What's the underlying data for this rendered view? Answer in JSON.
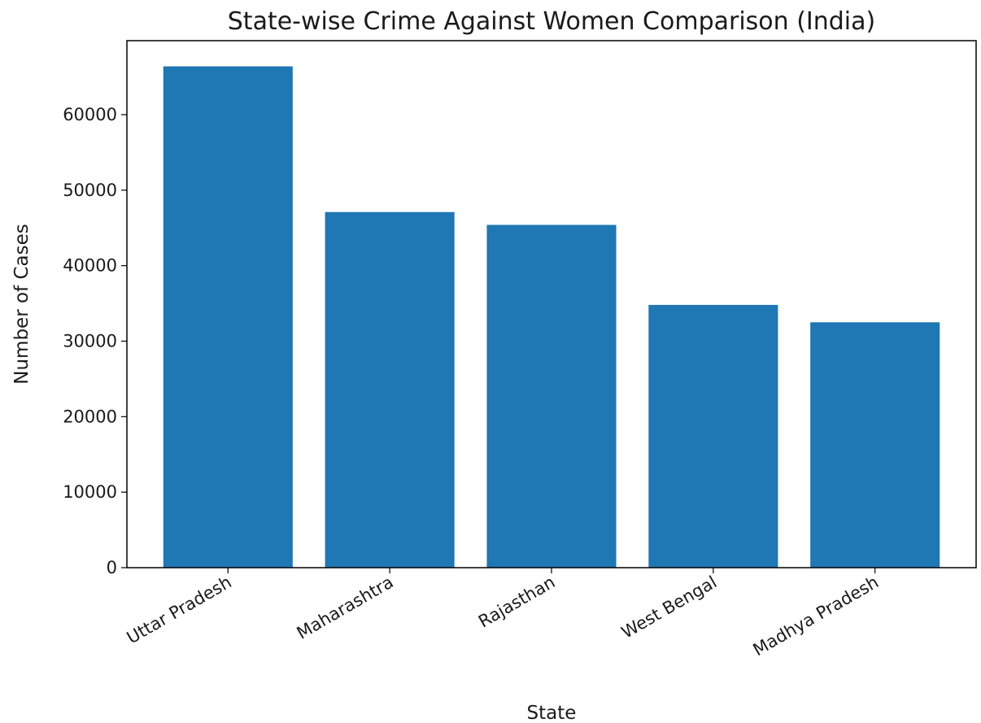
{
  "chart_data": {
    "type": "bar",
    "title": "State-wise Crime Against Women Comparison (India)",
    "xlabel": "State",
    "ylabel": "Number of Cases",
    "categories": [
      "Uttar Pradesh",
      "Maharashtra",
      "Rajasthan",
      "West Bengal",
      "Madhya Pradesh"
    ],
    "values": [
      66400,
      47100,
      45400,
      34800,
      32500
    ],
    "ylim": [
      0,
      69800
    ],
    "yticks": [
      0,
      10000,
      20000,
      30000,
      40000,
      50000,
      60000
    ],
    "grid": false,
    "bar_color": "#1f77b4"
  }
}
